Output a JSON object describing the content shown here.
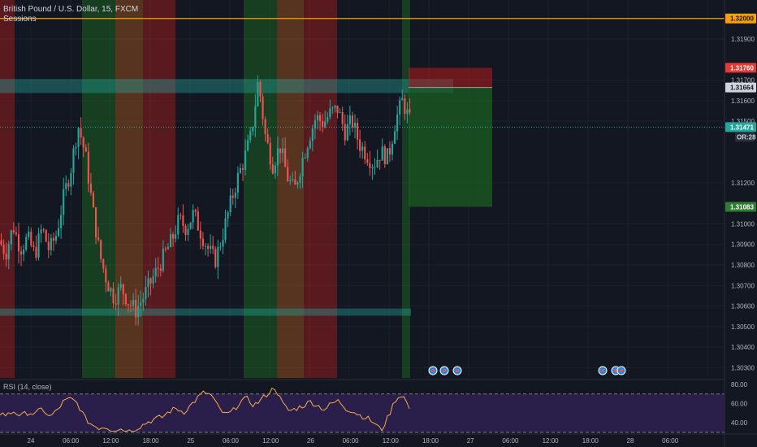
{
  "header": {
    "symbol": "British Pound / U.S. Dollar, 15, FXCM",
    "indicator": "Sessions"
  },
  "rsi": {
    "title": "RSI (14, close)",
    "ticks": [
      "80.00",
      "60.00",
      "40.00"
    ]
  },
  "colors": {
    "up": "#26a69a",
    "down": "#ef5350",
    "rsi_line": "#f7a94a",
    "rsi_band": "#2a1f4a",
    "target": "#1b5e20",
    "stop": "#7b1c1c",
    "orange_line": "#f7a000"
  },
  "chart_data": {
    "type": "candlestick",
    "title": "British Pound / U.S. Dollar, 15, FXCM",
    "y_ticks": [
      "1.31900",
      "1.31700",
      "1.31600",
      "1.31500",
      "1.31200",
      "1.31000",
      "1.30900",
      "1.30800",
      "1.30700",
      "1.30600",
      "1.30500",
      "1.30400",
      "1.30300"
    ],
    "x_ticks": [
      "24",
      "06:00",
      "12:00",
      "18:00",
      "25",
      "06:00",
      "12:00",
      "26",
      "06:00",
      "12:00",
      "18:00",
      "27",
      "06:00",
      "12:00",
      "18:00",
      "28",
      "06:00"
    ],
    "price_tags": {
      "resistance": "1.32000",
      "stop": "1.31760",
      "entry": "1.31664",
      "last": "1.31471",
      "rr": "OR:28",
      "target": "1.31083"
    },
    "ylim": [
      1.3025,
      1.3209
    ],
    "path": [
      1.3092,
      1.3086,
      1.3099,
      1.3088,
      1.3093,
      1.3085,
      1.3098,
      1.3087,
      1.3095,
      1.3113,
      1.3127,
      1.3148,
      1.3134,
      1.3108,
      1.3085,
      1.3072,
      1.3064,
      1.3069,
      1.3062,
      1.3058,
      1.3064,
      1.3071,
      1.3078,
      1.3085,
      1.3092,
      1.3102,
      1.3098,
      1.3105,
      1.3096,
      1.3088,
      1.3082,
      1.3094,
      1.3108,
      1.3121,
      1.3131,
      1.3143,
      1.317,
      1.3142,
      1.3129,
      1.3138,
      1.3123,
      1.3116,
      1.313,
      1.3142,
      1.3152,
      1.3149,
      1.3154,
      1.3156,
      1.3145,
      1.315,
      1.3139,
      1.3134,
      1.3129,
      1.3135,
      1.3132,
      1.315,
      1.316,
      1.315
    ],
    "rsi_values": [
      50,
      48,
      52,
      47,
      51,
      49,
      55,
      46,
      52,
      62,
      65,
      60,
      45,
      38,
      35,
      36,
      32,
      34,
      31,
      33,
      37,
      41,
      44,
      46,
      52,
      55,
      51,
      58,
      66,
      72,
      68,
      55,
      48,
      52,
      62,
      65,
      58,
      64,
      71,
      77,
      60,
      52,
      55,
      58,
      62,
      58,
      54,
      60,
      63,
      55,
      52,
      48,
      45,
      40,
      32,
      46,
      64,
      70,
      55
    ],
    "sessions": [
      {
        "start": 0,
        "end": 18,
        "color": "red"
      },
      {
        "start": 101,
        "end": 142,
        "color": "green"
      },
      {
        "start": 142,
        "end": 176,
        "color": "orange"
      },
      {
        "start": 176,
        "end": 216,
        "color": "red"
      },
      {
        "start": 300,
        "end": 341,
        "color": "green"
      },
      {
        "start": 341,
        "end": 374,
        "color": "orange"
      },
      {
        "start": 374,
        "end": 415,
        "color": "red"
      },
      {
        "start": 495,
        "end": 505,
        "color": "green"
      }
    ]
  }
}
